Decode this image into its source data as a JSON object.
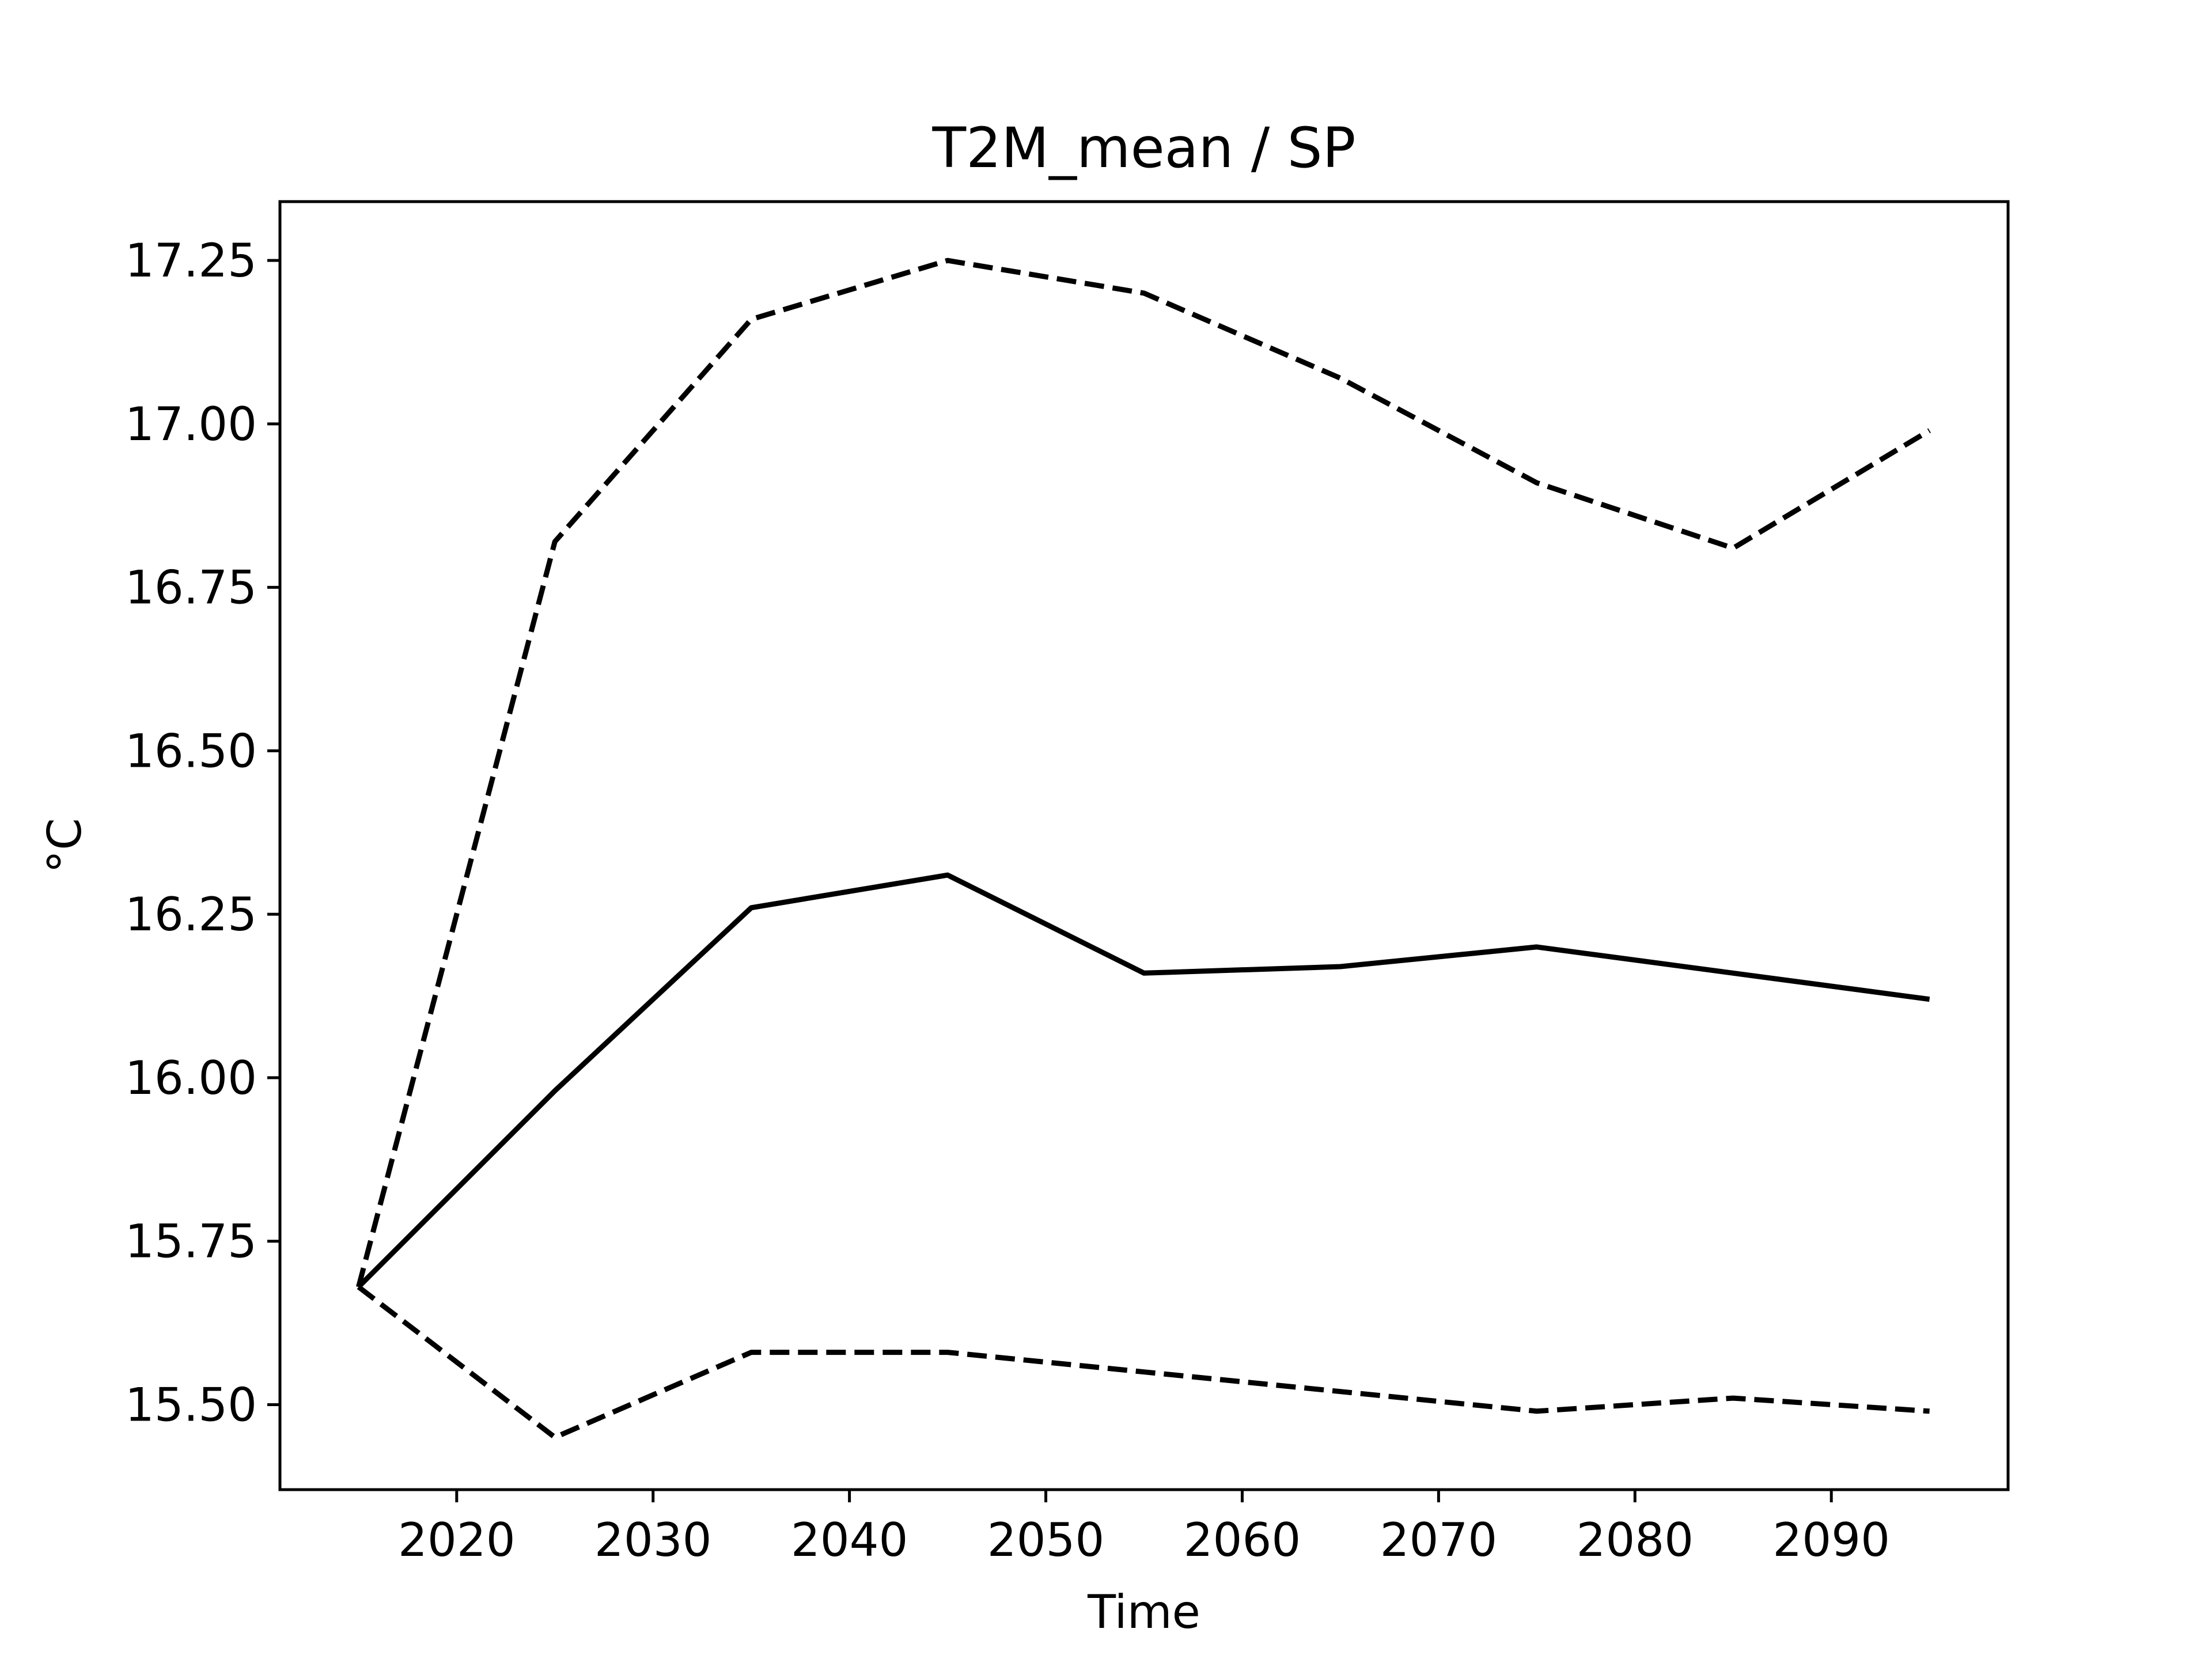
{
  "chart_data": {
    "type": "line",
    "title": "T2M_mean / SP",
    "xlabel": "Time",
    "ylabel": "°C",
    "xlim": [
      2011,
      2099
    ],
    "ylim": [
      15.37,
      17.34
    ],
    "x_ticks": [
      2020,
      2030,
      2040,
      2050,
      2060,
      2070,
      2080,
      2090
    ],
    "y_ticks": [
      15.5,
      15.75,
      16.0,
      16.25,
      16.5,
      16.75,
      17.0,
      17.25
    ],
    "y_tick_labels": [
      "15.50",
      "15.75",
      "16.00",
      "16.25",
      "16.50",
      "16.75",
      "17.00",
      "17.25"
    ],
    "x_tick_labels": [
      "2020",
      "2030",
      "2040",
      "2050",
      "2060",
      "2070",
      "2080",
      "2090"
    ],
    "grid": false,
    "x": [
      2015,
      2025,
      2035,
      2045,
      2055,
      2065,
      2075,
      2085,
      2095
    ],
    "series": [
      {
        "style": "solid",
        "color": "#000000",
        "values": [
          15.68,
          15.98,
          16.26,
          16.31,
          16.16,
          16.17,
          16.2,
          16.16,
          16.12
        ]
      },
      {
        "style": "dashed",
        "color": "#000000",
        "values": [
          15.68,
          16.82,
          17.16,
          17.25,
          17.2,
          17.07,
          16.91,
          16.81,
          16.99
        ]
      },
      {
        "style": "dashed",
        "color": "#000000",
        "values": [
          15.68,
          15.45,
          15.58,
          15.58,
          15.55,
          15.52,
          15.49,
          15.51,
          15.49
        ]
      }
    ]
  }
}
